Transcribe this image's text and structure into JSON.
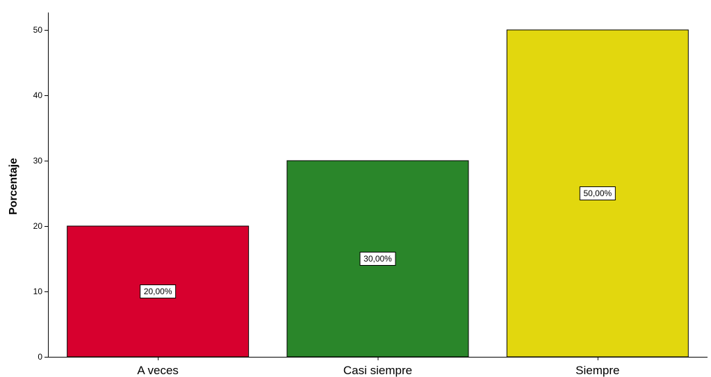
{
  "chart_data": {
    "type": "bar",
    "categories": [
      "A veces",
      "Casi siempre",
      "Siempre"
    ],
    "values": [
      20,
      30,
      50
    ],
    "data_labels": [
      "20,00%",
      "30,00%",
      "50,00%"
    ],
    "colors": [
      "#D7002E",
      "#2A862A",
      "#E2D70E"
    ],
    "xlabel": "",
    "ylabel": "Porcentaje",
    "ylim": [
      0,
      50
    ],
    "yticks": [
      0,
      10,
      20,
      30,
      40,
      50
    ],
    "grid": false
  }
}
